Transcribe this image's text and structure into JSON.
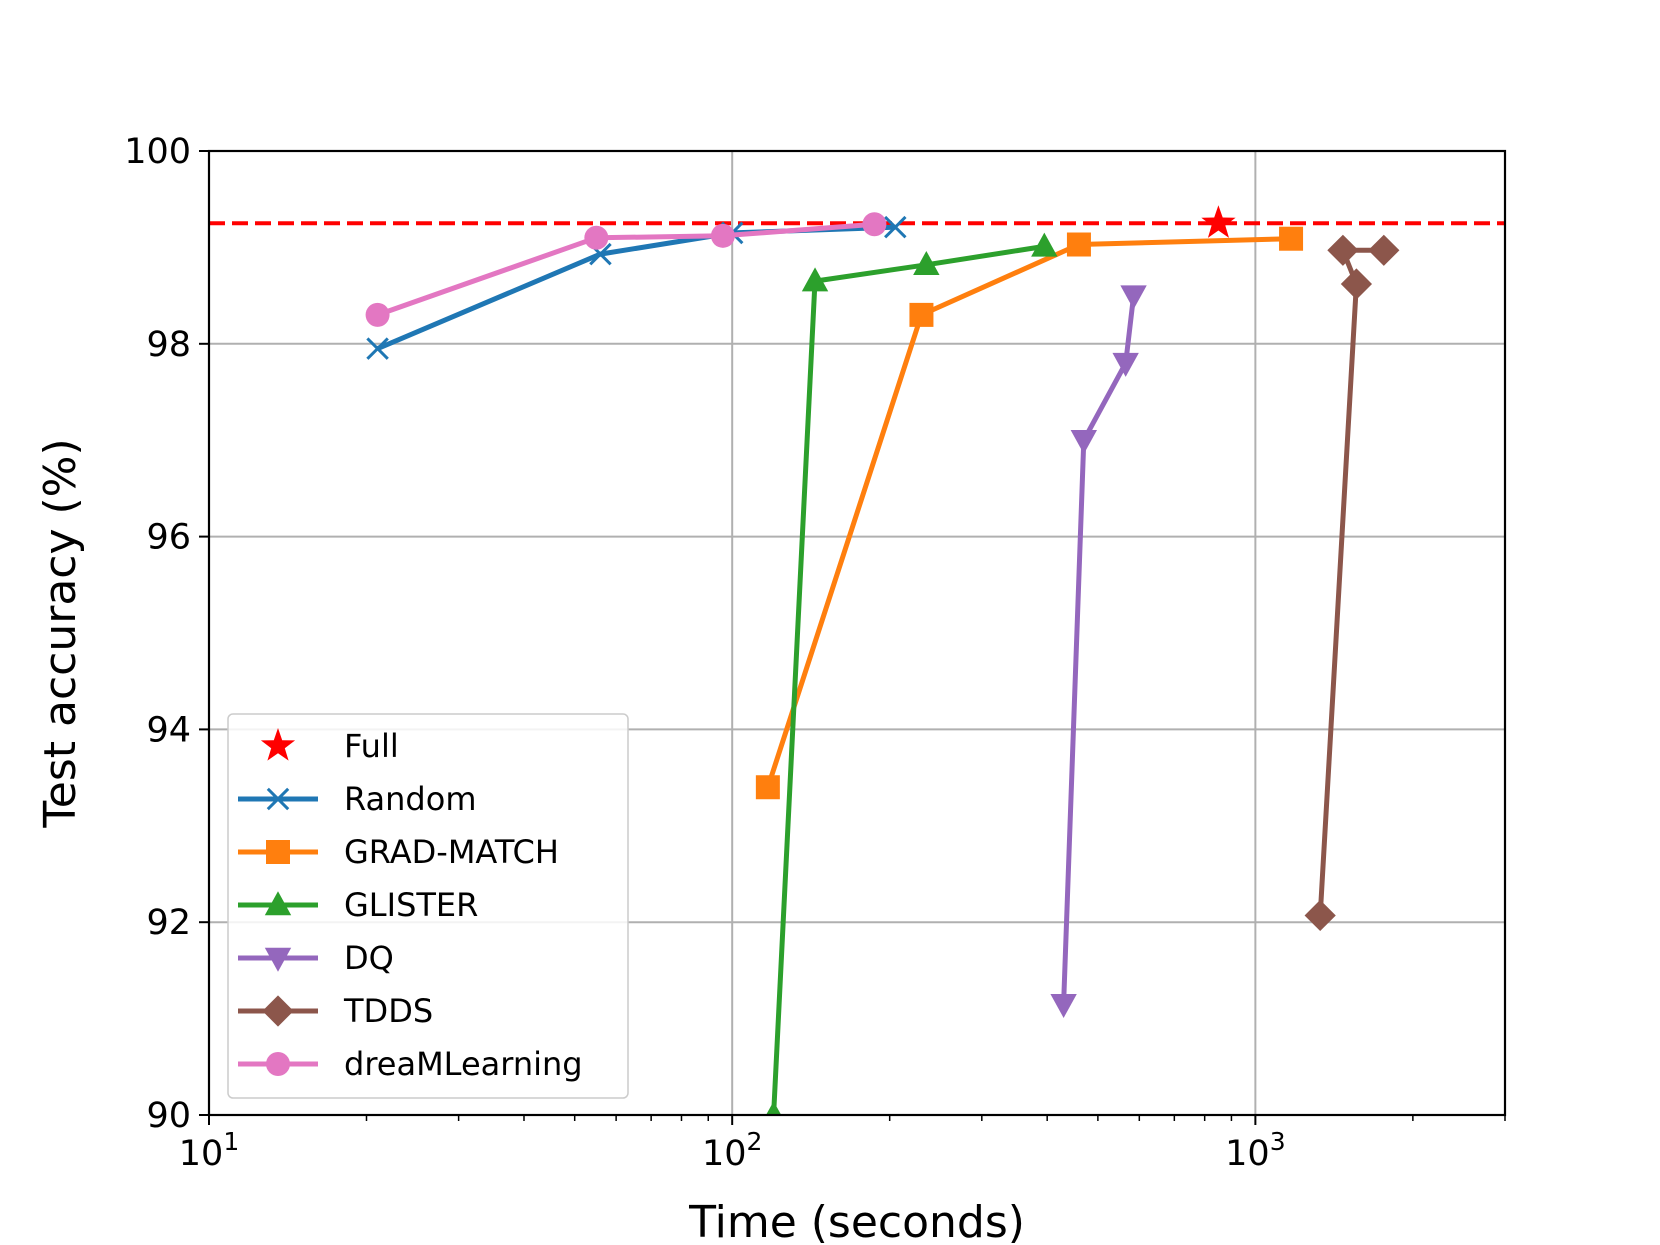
{
  "chart_data": {
    "type": "line",
    "title": "",
    "xlabel": "Time (seconds)",
    "ylabel": "Test accuracy (%)",
    "xscale": "log",
    "xlim": [
      10,
      3000
    ],
    "ylim": [
      90,
      100
    ],
    "x_ticks": [
      {
        "value": 10,
        "base": "10",
        "exp": "1"
      },
      {
        "value": 100,
        "base": "10",
        "exp": "2"
      },
      {
        "value": 1000,
        "base": "10",
        "exp": "3"
      }
    ],
    "y_ticks": [
      90,
      92,
      94,
      96,
      98,
      100
    ],
    "y_tick_labels": [
      "90",
      "92",
      "94",
      "96",
      "98",
      "100"
    ],
    "grid": true,
    "legend_position": "lower-left",
    "reference_line": {
      "name": "Full accuracy",
      "y": 99.25,
      "color": "#ff0000",
      "style": "dashed"
    },
    "series": [
      {
        "name": "Full",
        "color": "#ff0000",
        "marker": "star",
        "line": false,
        "points": [
          {
            "x": 850,
            "y": 99.25
          }
        ]
      },
      {
        "name": "Random",
        "color": "#1f77b4",
        "marker": "x",
        "line": true,
        "points": [
          {
            "x": 21,
            "y": 97.95
          },
          {
            "x": 56,
            "y": 98.93
          },
          {
            "x": 100,
            "y": 99.15
          },
          {
            "x": 205,
            "y": 99.21
          }
        ]
      },
      {
        "name": "GRAD-MATCH",
        "color": "#ff7f0e",
        "marker": "square",
        "line": true,
        "points": [
          {
            "x": 117,
            "y": 93.4
          },
          {
            "x": 230,
            "y": 98.3
          },
          {
            "x": 460,
            "y": 99.03
          },
          {
            "x": 1170,
            "y": 99.09
          }
        ]
      },
      {
        "name": "GLISTER",
        "color": "#2ca02c",
        "marker": "triangle-up",
        "line": true,
        "points": [
          {
            "x": 120,
            "y": 90.0
          },
          {
            "x": 144,
            "y": 98.65
          },
          {
            "x": 235,
            "y": 98.82
          },
          {
            "x": 395,
            "y": 99.01
          }
        ]
      },
      {
        "name": "DQ",
        "color": "#9467bd",
        "marker": "triangle-down",
        "line": true,
        "points": [
          {
            "x": 430,
            "y": 91.15
          },
          {
            "x": 470,
            "y": 97.0
          },
          {
            "x": 565,
            "y": 97.8
          },
          {
            "x": 585,
            "y": 98.5
          }
        ]
      },
      {
        "name": "TDDS",
        "color": "#8c564b",
        "marker": "diamond",
        "line": true,
        "points": [
          {
            "x": 1330,
            "y": 92.07
          },
          {
            "x": 1560,
            "y": 98.62
          },
          {
            "x": 1470,
            "y": 98.97
          },
          {
            "x": 1760,
            "y": 98.97
          }
        ]
      },
      {
        "name": "dreaMLearning",
        "color": "#e377c2",
        "marker": "circle",
        "line": true,
        "points": [
          {
            "x": 21,
            "y": 98.3
          },
          {
            "x": 55,
            "y": 99.1
          },
          {
            "x": 96,
            "y": 99.12
          },
          {
            "x": 187,
            "y": 99.24
          }
        ]
      }
    ]
  }
}
